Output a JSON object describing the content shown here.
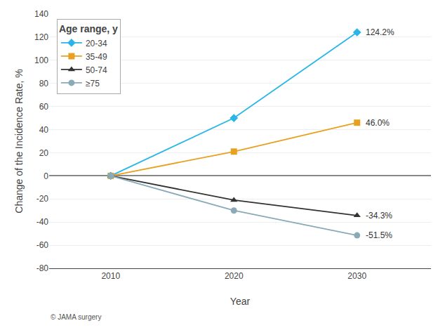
{
  "chart_data": {
    "type": "line",
    "xlabel": "Year",
    "ylabel": "Change of the Incidence Rate, %",
    "legend_title": "Age range, y",
    "x": [
      2010,
      2020,
      2030
    ],
    "series": [
      {
        "name": "20-34",
        "values": [
          0,
          50,
          124.2
        ],
        "color": "#29B5E8",
        "marker": "diamond"
      },
      {
        "name": "35-49",
        "values": [
          0,
          21,
          46.0
        ],
        "color": "#E8A020",
        "marker": "square"
      },
      {
        "name": "50-74",
        "values": [
          0,
          -21,
          -34.3
        ],
        "color": "#333333",
        "marker": "triangle-up"
      },
      {
        "name": "≥75",
        "values": [
          0,
          -30,
          -51.5
        ],
        "color": "#8AAAB8",
        "marker": "circle"
      }
    ],
    "annotations": [
      {
        "x": 2030,
        "y": 124.2,
        "text": "124.2%"
      },
      {
        "x": 2030,
        "y": 46.0,
        "text": "46.0%"
      },
      {
        "x": 2030,
        "y": -34.3,
        "text": "-34.3%"
      },
      {
        "x": 2030,
        "y": -51.5,
        "text": "-51.5%"
      }
    ],
    "watermark": "© JAMA surgery",
    "xlim": [
      2005,
      2036
    ],
    "xticks": [
      2010,
      2020,
      2030
    ],
    "ylim": [
      -80,
      140
    ],
    "yticks": [
      -80,
      -60,
      -40,
      -20,
      0,
      20,
      40,
      60,
      80,
      100,
      120,
      140
    ],
    "grid": "y",
    "legend": "upper left"
  }
}
